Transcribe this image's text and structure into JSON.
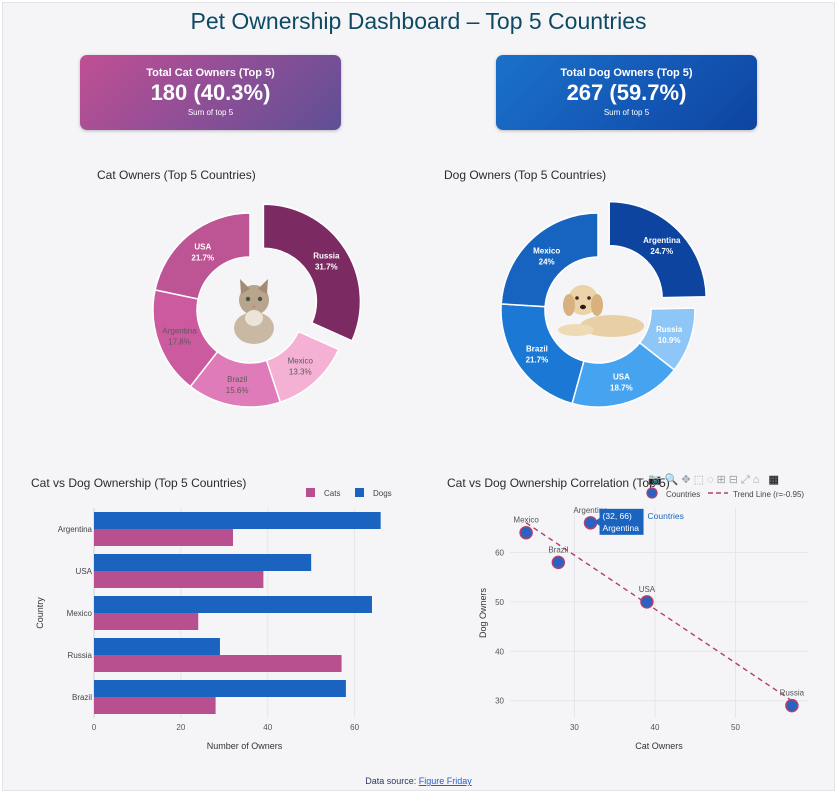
{
  "page_title": "Pet Ownership Dashboard – Top 5 Countries",
  "kpis": {
    "cat": {
      "label": "Total Cat Owners (Top 5)",
      "value": "180 (40.3%)",
      "sub": "Sum of top 5"
    },
    "dog": {
      "label": "Total Dog Owners (Top 5)",
      "value": "267 (59.7%)",
      "sub": "Sum of top 5"
    }
  },
  "footer": {
    "prefix": "Data source: ",
    "link": "Figure Friday"
  },
  "toolbar": {
    "icons": [
      "camera-icon",
      "zoom-icon",
      "pan-icon",
      "box-select-icon",
      "lasso-icon",
      "zoom-in-icon",
      "zoom-out-icon",
      "autoscale-icon",
      "home-icon",
      "logo-icon"
    ],
    "glyphs": "📷🔍✥⬚◌⊞⊟⤢⌂",
    "logo": "▦"
  },
  "colors": {
    "cat": "#b85090",
    "dog": "#1a64c0",
    "trend": "#b0406e"
  },
  "chart_data": [
    {
      "type": "pie",
      "title": "Cat Owners (Top 5 Countries)",
      "labels": [
        "Russia",
        "Mexico",
        "Brazil",
        "Argentina",
        "USA"
      ],
      "values": [
        31.7,
        13.3,
        15.6,
        17.8,
        21.7
      ],
      "value_labels": [
        "31.7%",
        "13.3%",
        "15.6%",
        "17.8%",
        "21.7%"
      ],
      "colors": [
        "#7c2a62",
        "#f4b1d3",
        "#e07bb9",
        "#cb5b9e",
        "#bd5494"
      ],
      "text_colors": [
        "#ffffff",
        "#5a5a5a",
        "#5a5a5a",
        "#5a5a5a",
        "#ffffff"
      ],
      "pulled": "Russia",
      "center_image": "cat"
    },
    {
      "type": "pie",
      "title": "Dog Owners (Top 5 Countries)",
      "labels": [
        "Argentina",
        "Russia",
        "USA",
        "Brazil",
        "Mexico"
      ],
      "values": [
        24.7,
        10.9,
        18.7,
        21.7,
        24
      ],
      "value_labels": [
        "24.7%",
        "10.9%",
        "18.7%",
        "21.7%",
        "24%"
      ],
      "colors": [
        "#0d44a0",
        "#8ec7f7",
        "#45a3ef",
        "#1b79d5",
        "#1664c0"
      ],
      "text_colors": [
        "#ffffff",
        "#ffffff",
        "#ffffff",
        "#ffffff",
        "#ffffff"
      ],
      "pulled": "Argentina",
      "center_image": "dog"
    },
    {
      "type": "bar",
      "orientation": "horizontal",
      "title": "Cat vs Dog Ownership (Top 5 Countries)",
      "categories": [
        "Argentina",
        "USA",
        "Mexico",
        "Russia",
        "Brazil"
      ],
      "series": [
        {
          "name": "Cats",
          "values": [
            32,
            39,
            24,
            57,
            28
          ]
        },
        {
          "name": "Dogs",
          "values": [
            66,
            50,
            64,
            29,
            58
          ]
        }
      ],
      "xlabel": "Number of Owners",
      "ylabel": "Country",
      "xlim": [
        0,
        67
      ],
      "xticks": [
        0,
        20,
        40,
        60
      ]
    },
    {
      "type": "scatter",
      "title": "Cat vs Dog Ownership Correlation (Top 5)",
      "points": [
        {
          "label": "Mexico",
          "x": 24,
          "y": 64
        },
        {
          "label": "Argentina",
          "x": 32,
          "y": 66
        },
        {
          "label": "Brazil",
          "x": 28,
          "y": 58
        },
        {
          "label": "USA",
          "x": 39,
          "y": 50
        },
        {
          "label": "Russia",
          "x": 57,
          "y": 29
        }
      ],
      "trend_line": {
        "x": [
          24,
          57
        ],
        "y": [
          66,
          30
        ]
      },
      "legend": [
        "Countries",
        "Trend Line (r=-0.95)"
      ],
      "xlabel": "Cat Owners",
      "ylabel": "Dog Owners",
      "xlim": [
        22,
        59
      ],
      "ylim": [
        26.5,
        69
      ],
      "xticks": [
        30,
        40,
        50
      ],
      "yticks": [
        30,
        40,
        50,
        60
      ],
      "hover": {
        "coords": "(32, 66)",
        "trace": "Countries",
        "point": "Argentina"
      }
    }
  ]
}
